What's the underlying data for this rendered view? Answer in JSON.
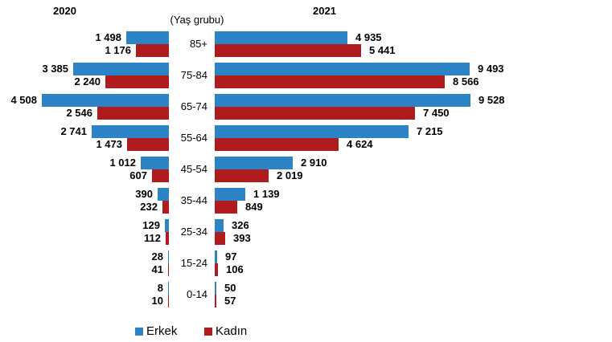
{
  "chart_data": {
    "type": "bar",
    "orientation": "horizontal-back-to-back",
    "center_title": "(Yaş grubu)",
    "categories": [
      "85+",
      "75-84",
      "65-74",
      "55-64",
      "45-54",
      "35-44",
      "25-34",
      "15-24",
      "0-14"
    ],
    "legend": [
      {
        "label": "Erkek",
        "color": "#2C83C5"
      },
      {
        "label": "Kadın",
        "color": "#B01C1E"
      }
    ],
    "gridlines": false,
    "value_labels_shown": true,
    "panels": [
      {
        "year": "2020",
        "side": "left",
        "series": [
          {
            "name": "Erkek",
            "values": [
              "1 498",
              "3 385",
              "4 508",
              "2 741",
              "1 012",
              "390",
              "129",
              "28",
              "8"
            ]
          },
          {
            "name": "Kadın",
            "values": [
              "1 176",
              "2 240",
              "2 546",
              "1 473",
              "607",
              "232",
              "112",
              "41",
              "10"
            ]
          }
        ]
      },
      {
        "year": "2021",
        "side": "right",
        "series": [
          {
            "name": "Erkek",
            "values": [
              "4 935",
              "9 493",
              "9 528",
              "7 215",
              "2 910",
              "1 139",
              "326",
              "97",
              "50"
            ]
          },
          {
            "name": "Kadın",
            "values": [
              "5 441",
              "8 566",
              "7 450",
              "4 624",
              "2 019",
              "849",
              "393",
              "106",
              "57"
            ]
          }
        ]
      }
    ]
  }
}
